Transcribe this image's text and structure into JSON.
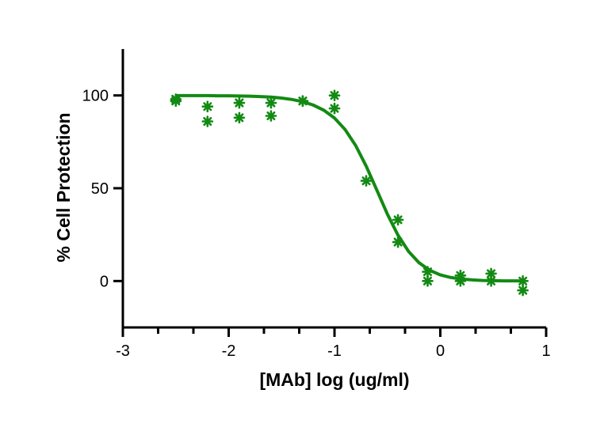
{
  "chart_data": {
    "type": "scatter",
    "title": "",
    "xlabel": "[MAb] log (ug/ml)",
    "ylabel": "% Cell Protection",
    "xlim": [
      -3,
      1
    ],
    "ylim": [
      -25,
      125
    ],
    "xticks": [
      -3,
      -2,
      -1,
      0,
      1
    ],
    "xtick_labels": [
      "-3",
      "-2",
      "-1",
      "0",
      "1"
    ],
    "yticks": [
      0,
      50,
      100
    ],
    "ytick_labels": [
      "0",
      "50",
      "100"
    ],
    "grid": false,
    "legend": "none",
    "color": "#138a13",
    "marker": "asterisk",
    "series": [
      {
        "points": [
          [
            -2.5,
            98
          ],
          [
            -2.5,
            97
          ],
          [
            -2.2,
            94
          ],
          [
            -2.2,
            86
          ],
          [
            -1.9,
            96
          ],
          [
            -1.9,
            88
          ],
          [
            -1.6,
            96
          ],
          [
            -1.6,
            89
          ],
          [
            -1.3,
            97
          ],
          [
            -1.3,
            97
          ],
          [
            -1.0,
            100
          ],
          [
            -1.0,
            93
          ],
          [
            -0.7,
            54
          ],
          [
            -0.4,
            33
          ],
          [
            -0.4,
            21
          ],
          [
            -0.12,
            5
          ],
          [
            -0.12,
            0
          ],
          [
            0.19,
            3
          ],
          [
            0.19,
            0
          ],
          [
            0.48,
            4
          ],
          [
            0.48,
            0
          ],
          [
            0.78,
            0
          ],
          [
            0.78,
            -5
          ]
        ]
      }
    ],
    "fit_curve": [
      [
        -2.5,
        99.9
      ],
      [
        -2.4,
        99.9
      ],
      [
        -2.3,
        99.9
      ],
      [
        -2.2,
        99.9
      ],
      [
        -2.1,
        99.8
      ],
      [
        -2.0,
        99.8
      ],
      [
        -1.9,
        99.7
      ],
      [
        -1.8,
        99.6
      ],
      [
        -1.7,
        99.4
      ],
      [
        -1.6,
        99.1
      ],
      [
        -1.5,
        98.6
      ],
      [
        -1.4,
        97.8
      ],
      [
        -1.3,
        96.6
      ],
      [
        -1.2,
        94.8
      ],
      [
        -1.1,
        92.0
      ],
      [
        -1.0,
        87.8
      ],
      [
        -0.9,
        81.6
      ],
      [
        -0.8,
        73.0
      ],
      [
        -0.7,
        61.9
      ],
      [
        -0.6,
        49.0
      ],
      [
        -0.5,
        36.0
      ],
      [
        -0.4,
        24.7
      ],
      [
        -0.3,
        15.9
      ],
      [
        -0.2,
        9.8
      ],
      [
        -0.1,
        5.8
      ],
      [
        0.0,
        3.3
      ],
      [
        0.1,
        1.9
      ],
      [
        0.2,
        1.1
      ],
      [
        0.3,
        0.6
      ],
      [
        0.4,
        0.3
      ],
      [
        0.5,
        0.2
      ],
      [
        0.6,
        0.1
      ],
      [
        0.7,
        0.1
      ],
      [
        0.78,
        0.05
      ]
    ]
  }
}
